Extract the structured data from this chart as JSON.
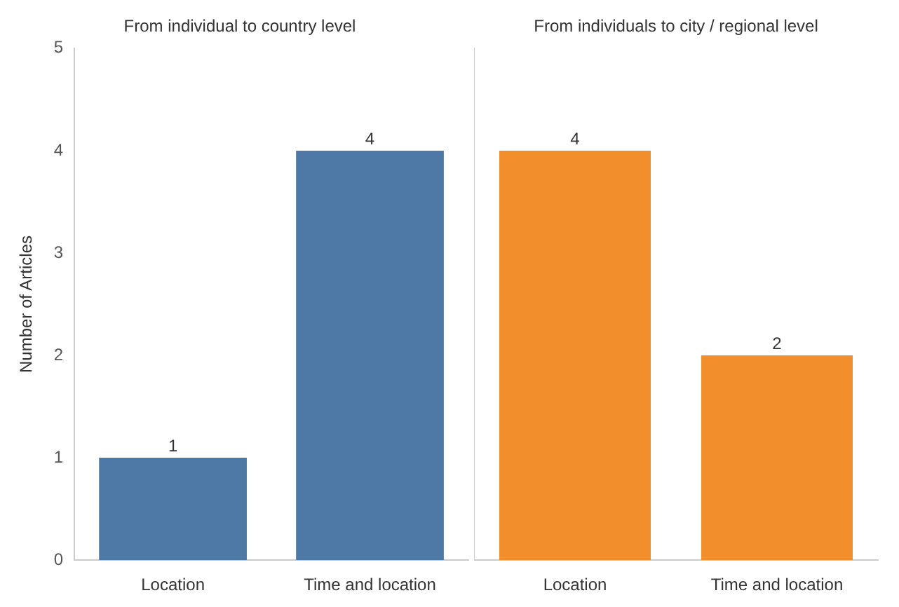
{
  "chart_data": [
    {
      "type": "bar",
      "title": "From individual to country level",
      "ylabel": "Number of Articles",
      "categories": [
        "Location",
        "Time and location"
      ],
      "values": [
        1,
        4
      ],
      "color": "#4e79a7",
      "ylim": [
        0,
        5
      ],
      "yticks": [
        0,
        1,
        2,
        3,
        4,
        5
      ],
      "data_labels": true,
      "grid": false,
      "legend": false
    },
    {
      "type": "bar",
      "title": "From individuals to city / regional level",
      "categories": [
        "Location",
        "Time and location"
      ],
      "values": [
        4,
        2
      ],
      "color": "#f28e2b",
      "ylim": [
        0,
        5
      ],
      "yticks": [
        0,
        1,
        2,
        3,
        4,
        5
      ],
      "data_labels": true,
      "grid": false,
      "legend": false,
      "tick_labels": "x"
    }
  ]
}
